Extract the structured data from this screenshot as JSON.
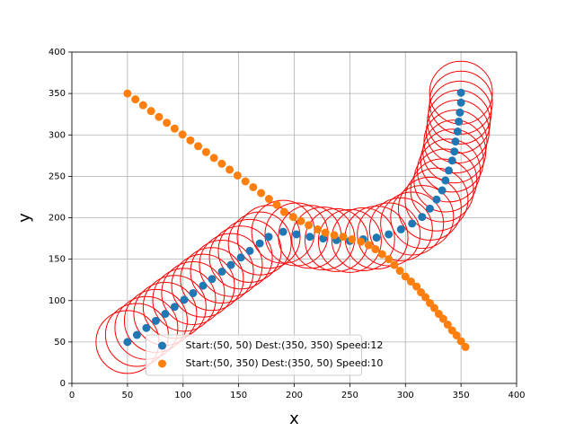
{
  "chart_data": {
    "type": "scatter",
    "x_label": "x",
    "y_label": "y",
    "xlim": [
      0,
      400
    ],
    "ylim": [
      0,
      400
    ],
    "xticks": [
      0,
      50,
      100,
      150,
      200,
      250,
      300,
      350,
      400
    ],
    "yticks": [
      0,
      50,
      100,
      150,
      200,
      250,
      300,
      350,
      400
    ],
    "grid": true,
    "legend": "lower center",
    "series": [
      {
        "name": "Start:(50, 50) Dest:(350, 350) Speed:12",
        "color": "#1f77b4",
        "ring_color": "#ff0000",
        "x": [
          50,
          58.5,
          67,
          75.5,
          84,
          92.4,
          101,
          109,
          118,
          126,
          135,
          143,
          152,
          160,
          169,
          177,
          190,
          202,
          214,
          226,
          238,
          250,
          262,
          274,
          285,
          296,
          306,
          315,
          322,
          328,
          333,
          336,
          339,
          342,
          344,
          345,
          347,
          348,
          349,
          350,
          350
        ],
        "values": [
          50,
          58.5,
          67,
          75.5,
          84,
          92.4,
          101,
          109,
          118,
          126,
          135,
          143,
          152,
          160,
          169,
          177,
          183,
          180,
          177,
          175,
          173,
          172,
          174,
          176,
          180,
          186,
          193,
          201,
          211,
          222,
          233,
          245,
          257,
          269,
          280,
          292,
          304,
          316,
          327,
          339,
          351
        ]
      },
      {
        "name": "Start:(50, 350) Dest:(350, 50) Speed:10",
        "color": "#ff7f0e",
        "x": [
          50,
          57.1,
          64.1,
          71.2,
          78.3,
          85.4,
          92.4,
          99.5,
          106.6,
          113.6,
          120.7,
          127.8,
          134.8,
          141.9,
          149,
          156.1,
          163.1,
          170.2,
          177.3,
          184.3,
          191,
          199,
          206,
          213,
          221,
          228,
          236,
          244,
          252,
          260,
          267,
          273,
          279,
          285,
          290,
          295,
          300,
          305,
          310,
          314,
          318,
          322,
          326,
          330,
          334,
          338,
          342,
          346,
          350,
          354
        ],
        "values": [
          350,
          342.9,
          335.9,
          328.8,
          321.7,
          314.6,
          307.6,
          300.5,
          293.4,
          286.4,
          279.3,
          272.2,
          265.2,
          258.1,
          251,
          243.9,
          236.9,
          229.8,
          222.7,
          215.7,
          207,
          201,
          196,
          191,
          186,
          182,
          179,
          177,
          174,
          171,
          167,
          162,
          156,
          150,
          143,
          136,
          129,
          123,
          117,
          110,
          104,
          97,
          91,
          84,
          78,
          71,
          64,
          58,
          51,
          44
        ]
      }
    ]
  }
}
